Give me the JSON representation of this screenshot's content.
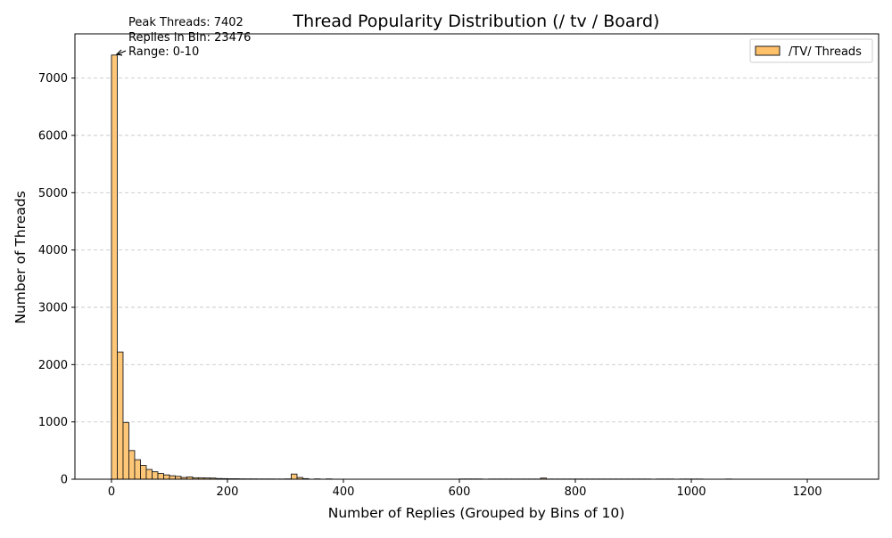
{
  "chart_data": {
    "type": "bar",
    "title": "Thread Popularity Distribution (/ tv / Board)",
    "xlabel": "Number of Replies (Grouped by Bins of 10)",
    "ylabel": "Number of Threads",
    "bin_width": 10,
    "xlim": [
      -63,
      1323
    ],
    "ylim": [
      0,
      7772
    ],
    "xticks": [
      0,
      200,
      400,
      600,
      800,
      1000,
      1200
    ],
    "yticks": [
      0,
      1000,
      2000,
      3000,
      4000,
      5000,
      6000,
      7000
    ],
    "grid": "y-dashed",
    "legend_position": "top-right",
    "colors": {
      "bar_fill": "#fec068",
      "bar_edge": "#1a1a1a",
      "grid": "#c8c8c8"
    },
    "series": [
      {
        "name": "/TV/ Threads",
        "bins": [
          {
            "x": 0,
            "y": 7402
          },
          {
            "x": 10,
            "y": 2220
          },
          {
            "x": 20,
            "y": 990
          },
          {
            "x": 30,
            "y": 500
          },
          {
            "x": 40,
            "y": 340
          },
          {
            "x": 50,
            "y": 240
          },
          {
            "x": 60,
            "y": 170
          },
          {
            "x": 70,
            "y": 130
          },
          {
            "x": 80,
            "y": 100
          },
          {
            "x": 90,
            "y": 75
          },
          {
            "x": 100,
            "y": 60
          },
          {
            "x": 110,
            "y": 50
          },
          {
            "x": 120,
            "y": 30
          },
          {
            "x": 130,
            "y": 40
          },
          {
            "x": 140,
            "y": 25
          },
          {
            "x": 150,
            "y": 25
          },
          {
            "x": 160,
            "y": 22
          },
          {
            "x": 170,
            "y": 20
          },
          {
            "x": 180,
            "y": 12
          },
          {
            "x": 190,
            "y": 10
          },
          {
            "x": 200,
            "y": 8
          },
          {
            "x": 210,
            "y": 8
          },
          {
            "x": 220,
            "y": 6
          },
          {
            "x": 230,
            "y": 5
          },
          {
            "x": 240,
            "y": 5
          },
          {
            "x": 250,
            "y": 4
          },
          {
            "x": 260,
            "y": 4
          },
          {
            "x": 270,
            "y": 4
          },
          {
            "x": 280,
            "y": 3
          },
          {
            "x": 290,
            "y": 3
          },
          {
            "x": 300,
            "y": 5
          },
          {
            "x": 310,
            "y": 90
          },
          {
            "x": 320,
            "y": 30
          },
          {
            "x": 330,
            "y": 10
          },
          {
            "x": 350,
            "y": 5
          },
          {
            "x": 370,
            "y": 5
          },
          {
            "x": 600,
            "y": 4
          },
          {
            "x": 610,
            "y": 4
          },
          {
            "x": 620,
            "y": 4
          },
          {
            "x": 630,
            "y": 4
          },
          {
            "x": 650,
            "y": 3
          },
          {
            "x": 660,
            "y": 3
          },
          {
            "x": 670,
            "y": 3
          },
          {
            "x": 680,
            "y": 3
          },
          {
            "x": 690,
            "y": 3
          },
          {
            "x": 700,
            "y": 3
          },
          {
            "x": 710,
            "y": 3
          },
          {
            "x": 720,
            "y": 3
          },
          {
            "x": 730,
            "y": 3
          },
          {
            "x": 740,
            "y": 20
          },
          {
            "x": 750,
            "y": 3
          },
          {
            "x": 760,
            "y": 3
          },
          {
            "x": 770,
            "y": 3
          },
          {
            "x": 780,
            "y": 3
          },
          {
            "x": 790,
            "y": 3
          },
          {
            "x": 800,
            "y": 3
          },
          {
            "x": 810,
            "y": 3
          },
          {
            "x": 820,
            "y": 3
          },
          {
            "x": 830,
            "y": 3
          },
          {
            "x": 840,
            "y": 3
          },
          {
            "x": 850,
            "y": 3
          },
          {
            "x": 860,
            "y": 3
          },
          {
            "x": 870,
            "y": 3
          },
          {
            "x": 880,
            "y": 3
          },
          {
            "x": 890,
            "y": 3
          },
          {
            "x": 900,
            "y": 3
          },
          {
            "x": 910,
            "y": 3
          },
          {
            "x": 920,
            "y": 3
          },
          {
            "x": 940,
            "y": 3
          },
          {
            "x": 950,
            "y": 3
          },
          {
            "x": 960,
            "y": 3
          },
          {
            "x": 980,
            "y": 3
          },
          {
            "x": 990,
            "y": 3
          },
          {
            "x": 1000,
            "y": 3
          },
          {
            "x": 1010,
            "y": 3
          },
          {
            "x": 1060,
            "y": 3
          }
        ]
      }
    ],
    "annotation": {
      "lines": [
        "Peak Threads: 7402",
        "Replies in Bin: 23476",
        "Range: 0-10"
      ],
      "point": {
        "x": 5,
        "y": 7402
      }
    }
  }
}
